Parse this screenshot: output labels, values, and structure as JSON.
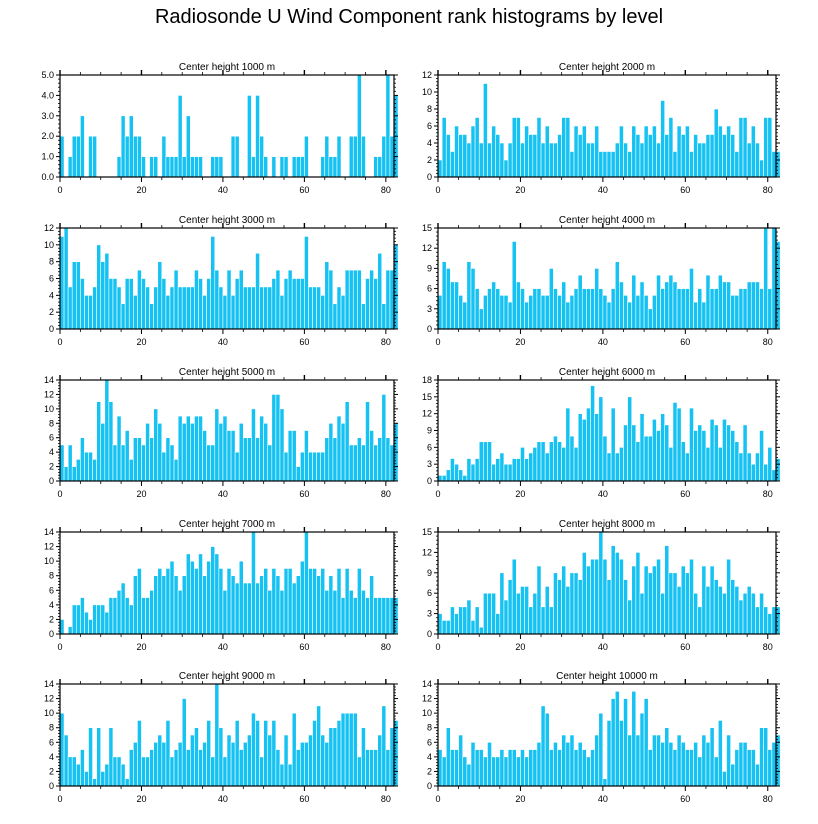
{
  "title": "Radiosonde U Wind Component rank histograms by level",
  "colors": {
    "bar": "#16c2f2",
    "bar_stroke": "#ffffff",
    "axis": "#000000"
  },
  "chart_data": [
    {
      "type": "bar",
      "title": "Center height 1000 m",
      "xlim": [
        0,
        82
      ],
      "ylim": [
        0,
        5
      ],
      "yticks": [
        0,
        1,
        2,
        3,
        4,
        5
      ],
      "ytick_labels": [
        "0.0",
        "1.0",
        "2.0",
        "3.0",
        "4.0",
        "5.0"
      ],
      "xticks": [
        0,
        20,
        40,
        60,
        80
      ],
      "xtick_labels": [
        "0",
        "20",
        "40",
        "60",
        "80"
      ],
      "values": [
        2,
        0,
        1,
        2,
        2,
        3,
        0,
        2,
        2,
        0,
        0,
        0,
        0,
        0,
        1,
        3,
        2,
        3,
        2,
        2,
        1,
        0,
        1,
        1,
        0,
        2,
        1,
        1,
        1,
        4,
        1,
        3,
        1,
        1,
        1,
        0,
        0,
        1,
        1,
        1,
        0,
        0,
        2,
        2,
        0,
        0,
        4,
        1,
        4,
        2,
        1,
        0,
        1,
        0,
        1,
        1,
        0,
        1,
        1,
        1,
        2,
        0,
        0,
        0,
        1,
        2,
        1,
        1,
        2,
        0,
        0,
        2,
        2,
        5,
        2,
        0,
        0,
        1,
        1,
        2,
        5,
        2,
        4
      ]
    },
    {
      "type": "bar",
      "title": "Center height 2000 m",
      "xlim": [
        0,
        82
      ],
      "ylim": [
        0,
        12
      ],
      "yticks": [
        0,
        2,
        4,
        6,
        8,
        10,
        12
      ],
      "ytick_labels": [
        "0",
        "2",
        "4",
        "6",
        "8",
        "10",
        "12"
      ],
      "xticks": [
        0,
        20,
        40,
        60,
        80
      ],
      "xtick_labels": [
        "0",
        "20",
        "40",
        "60",
        "80"
      ],
      "values": [
        2,
        7,
        5,
        3,
        6,
        5,
        5,
        4,
        6,
        7,
        4,
        11,
        4,
        6,
        5,
        4,
        2,
        4,
        7,
        7,
        4,
        6,
        5,
        5,
        7,
        4,
        6,
        4,
        4,
        5,
        7,
        7,
        3,
        6,
        5,
        6,
        4,
        4,
        6,
        3,
        3,
        3,
        3,
        4,
        6,
        4,
        3,
        6,
        5,
        4,
        6,
        5,
        6,
        4,
        9,
        5,
        7,
        3,
        6,
        5,
        6,
        3,
        5,
        4,
        4,
        5,
        5,
        8,
        6,
        5,
        6,
        5,
        3,
        7,
        7,
        4,
        6,
        4,
        2,
        7,
        7,
        3,
        3
      ]
    },
    {
      "type": "bar",
      "title": "Center height 3000 m",
      "xlim": [
        0,
        82
      ],
      "ylim": [
        0,
        12
      ],
      "yticks": [
        0,
        2,
        4,
        6,
        8,
        10,
        12
      ],
      "ytick_labels": [
        "0",
        "2",
        "4",
        "6",
        "8",
        "10",
        "12"
      ],
      "xticks": [
        0,
        20,
        40,
        60,
        80
      ],
      "xtick_labels": [
        "0",
        "20",
        "40",
        "60",
        "80"
      ],
      "values": [
        11,
        12,
        5,
        8,
        8,
        6,
        4,
        4,
        5,
        10,
        8,
        9,
        6,
        6,
        5,
        3,
        6,
        6,
        4,
        7,
        6,
        5,
        3,
        5,
        8,
        6,
        4,
        5,
        7,
        5,
        5,
        5,
        5,
        7,
        6,
        4,
        6,
        11,
        7,
        5,
        4,
        7,
        4,
        6,
        7,
        5,
        5,
        5,
        9,
        5,
        5,
        5,
        6,
        7,
        4,
        6,
        7,
        6,
        6,
        6,
        11,
        5,
        5,
        5,
        4,
        8,
        7,
        3,
        5,
        4,
        7,
        7,
        7,
        7,
        3,
        6,
        7,
        6,
        9,
        3,
        7,
        7,
        10
      ]
    },
    {
      "type": "bar",
      "title": "Center height 4000 m",
      "xlim": [
        0,
        82
      ],
      "ylim": [
        0,
        15
      ],
      "yticks": [
        0,
        3,
        6,
        9,
        12,
        15
      ],
      "ytick_labels": [
        "0",
        "3",
        "6",
        "9",
        "12",
        "15"
      ],
      "xticks": [
        0,
        20,
        40,
        60,
        80
      ],
      "xtick_labels": [
        "0",
        "20",
        "40",
        "60",
        "80"
      ],
      "values": [
        5,
        10,
        9,
        7,
        7,
        5,
        4,
        10,
        9,
        6,
        3,
        5,
        6,
        7,
        6,
        5,
        5,
        4,
        13,
        7,
        6,
        4,
        5,
        6,
        6,
        5,
        5,
        9,
        6,
        5,
        7,
        4,
        5,
        6,
        8,
        6,
        6,
        6,
        9,
        6,
        5,
        4,
        6,
        10,
        7,
        5,
        4,
        8,
        5,
        7,
        5,
        3,
        5,
        8,
        6,
        7,
        8,
        7,
        6,
        6,
        6,
        9,
        4,
        6,
        4,
        8,
        6,
        6,
        8,
        7,
        7,
        5,
        5,
        6,
        6,
        7,
        7,
        7,
        6,
        15,
        6,
        15,
        13
      ]
    },
    {
      "type": "bar",
      "title": "Center height 5000 m",
      "xlim": [
        0,
        82
      ],
      "ylim": [
        0,
        14
      ],
      "yticks": [
        0,
        2,
        4,
        6,
        8,
        10,
        12,
        14
      ],
      "ytick_labels": [
        "0",
        "2",
        "4",
        "6",
        "8",
        "10",
        "12",
        "14"
      ],
      "xticks": [
        0,
        20,
        40,
        60,
        80
      ],
      "xtick_labels": [
        "0",
        "20",
        "40",
        "60",
        "80"
      ],
      "values": [
        5,
        2,
        5,
        2,
        3,
        6,
        4,
        4,
        3,
        11,
        8,
        14,
        11,
        5,
        9,
        5,
        7,
        3,
        6,
        6,
        5,
        8,
        6,
        10,
        8,
        4,
        6,
        5,
        3,
        9,
        8,
        9,
        8,
        9,
        9,
        7,
        5,
        5,
        10,
        8,
        9,
        7,
        7,
        4,
        8,
        6,
        6,
        10,
        6,
        9,
        8,
        5,
        12,
        12,
        10,
        4,
        7,
        7,
        2,
        4,
        7,
        4,
        4,
        4,
        4,
        6,
        8,
        6,
        9,
        8,
        11,
        5,
        5,
        6,
        5,
        11,
        7,
        5,
        6,
        12,
        6,
        5,
        8
      ]
    },
    {
      "type": "bar",
      "title": "Center height 6000 m",
      "xlim": [
        0,
        82
      ],
      "ylim": [
        0,
        18
      ],
      "yticks": [
        0,
        3,
        6,
        9,
        12,
        15,
        18
      ],
      "ytick_labels": [
        "0",
        "3",
        "6",
        "9",
        "12",
        "15",
        "18"
      ],
      "xticks": [
        0,
        20,
        40,
        60,
        80
      ],
      "xtick_labels": [
        "0",
        "20",
        "40",
        "60",
        "80"
      ],
      "values": [
        1,
        1,
        2,
        4,
        3,
        2,
        1,
        4,
        3,
        4,
        7,
        7,
        7,
        3,
        4,
        5,
        3,
        3,
        4,
        4,
        6,
        4,
        5,
        6,
        7,
        7,
        5,
        7,
        8,
        7,
        6,
        13,
        8,
        6,
        12,
        11,
        13,
        17,
        12,
        15,
        8,
        5,
        13,
        5,
        6,
        10,
        15,
        10,
        7,
        12,
        8,
        8,
        11,
        9,
        12,
        10,
        6,
        14,
        13,
        7,
        5,
        13,
        9,
        10,
        9,
        6,
        11,
        10,
        6,
        11,
        10,
        9,
        7,
        5,
        10,
        5,
        3,
        5,
        9,
        3,
        6,
        2,
        4
      ]
    },
    {
      "type": "bar",
      "title": "Center height 7000 m",
      "xlim": [
        0,
        82
      ],
      "ylim": [
        0,
        14
      ],
      "yticks": [
        0,
        2,
        4,
        6,
        8,
        10,
        12,
        14
      ],
      "ytick_labels": [
        "0",
        "2",
        "4",
        "6",
        "8",
        "10",
        "12",
        "14"
      ],
      "xticks": [
        0,
        20,
        40,
        60,
        80
      ],
      "xtick_labels": [
        "0",
        "20",
        "40",
        "60",
        "80"
      ],
      "values": [
        2,
        0,
        1,
        4,
        4,
        5,
        3,
        2,
        4,
        4,
        4,
        3,
        5,
        5,
        6,
        7,
        5,
        4,
        8,
        9,
        5,
        5,
        6,
        8,
        9,
        8,
        9,
        10,
        8,
        6,
        8,
        11,
        10,
        9,
        11,
        8,
        10,
        12,
        11,
        9,
        6,
        9,
        8,
        7,
        10,
        7,
        7,
        14,
        7,
        8,
        9,
        6,
        9,
        8,
        6,
        9,
        9,
        7,
        8,
        10,
        14,
        9,
        9,
        8,
        9,
        6,
        8,
        6,
        9,
        5,
        9,
        6,
        5,
        9,
        6,
        5,
        8,
        5,
        5,
        5,
        5,
        5,
        5
      ]
    },
    {
      "type": "bar",
      "title": "Center height 8000 m",
      "xlim": [
        0,
        82
      ],
      "ylim": [
        0,
        15
      ],
      "yticks": [
        0,
        3,
        6,
        9,
        12,
        15
      ],
      "ytick_labels": [
        "0",
        "3",
        "6",
        "9",
        "12",
        "15"
      ],
      "xticks": [
        0,
        20,
        40,
        60,
        80
      ],
      "xtick_labels": [
        "0",
        "20",
        "40",
        "60",
        "80"
      ],
      "values": [
        3,
        2,
        2,
        4,
        3,
        4,
        4,
        5,
        2,
        4,
        1,
        6,
        6,
        6,
        3,
        9,
        5,
        8,
        11,
        6,
        7,
        7,
        4,
        6,
        10,
        4,
        7,
        4,
        9,
        8,
        10,
        7,
        9,
        9,
        8,
        12,
        10,
        11,
        11,
        15,
        11,
        8,
        13,
        12,
        11,
        8,
        5,
        10,
        12,
        6,
        10,
        9,
        10,
        11,
        6,
        13,
        9,
        9,
        7,
        10,
        9,
        11,
        6,
        4,
        10,
        7,
        10,
        8,
        7,
        6,
        11,
        8,
        7,
        5,
        6,
        7,
        6,
        4,
        6,
        4,
        3,
        4,
        4
      ]
    },
    {
      "type": "bar",
      "title": "Center height 9000 m",
      "xlim": [
        0,
        82
      ],
      "ylim": [
        0,
        14
      ],
      "yticks": [
        0,
        2,
        4,
        6,
        8,
        10,
        12,
        14
      ],
      "ytick_labels": [
        "0",
        "2",
        "4",
        "6",
        "8",
        "10",
        "12",
        "14"
      ],
      "xticks": [
        0,
        20,
        40,
        60,
        80
      ],
      "xtick_labels": [
        "0",
        "20",
        "40",
        "60",
        "80"
      ],
      "values": [
        10,
        7,
        4,
        4,
        3,
        5,
        2,
        8,
        1,
        8,
        2,
        3,
        8,
        4,
        4,
        3,
        1,
        5,
        6,
        9,
        4,
        4,
        5,
        6,
        7,
        6,
        9,
        4,
        5,
        6,
        12,
        5,
        7,
        8,
        5,
        6,
        9,
        4,
        14,
        8,
        4,
        7,
        6,
        9,
        5,
        6,
        7,
        10,
        9,
        4,
        9,
        7,
        9,
        5,
        3,
        7,
        3,
        10,
        5,
        6,
        6,
        7,
        9,
        11,
        7,
        6,
        8,
        8,
        9,
        10,
        10,
        10,
        10,
        4,
        8,
        5,
        5,
        5,
        7,
        11,
        5,
        8,
        9
      ]
    },
    {
      "type": "bar",
      "title": "Center height 10000 m",
      "xlim": [
        0,
        82
      ],
      "ylim": [
        0,
        14
      ],
      "yticks": [
        0,
        2,
        4,
        6,
        8,
        10,
        12,
        14
      ],
      "ytick_labels": [
        "0",
        "2",
        "4",
        "6",
        "8",
        "10",
        "12",
        "14"
      ],
      "xticks": [
        0,
        20,
        40,
        60,
        80
      ],
      "xtick_labels": [
        "0",
        "20",
        "40",
        "60",
        "80"
      ],
      "values": [
        5,
        4,
        8,
        5,
        5,
        7,
        4,
        3,
        6,
        5,
        5,
        4,
        6,
        4,
        4,
        5,
        4,
        5,
        5,
        4,
        5,
        4,
        5,
        5,
        6,
        11,
        10,
        5,
        6,
        5,
        7,
        6,
        7,
        5,
        6,
        5,
        4,
        5,
        7,
        10,
        1,
        9,
        12,
        13,
        9,
        12,
        7,
        13,
        7,
        10,
        12,
        5,
        7,
        7,
        6,
        8,
        6,
        5,
        7,
        6,
        5,
        5,
        6,
        4,
        7,
        6,
        8,
        4,
        9,
        2,
        7,
        3,
        5,
        6,
        6,
        5,
        5,
        3,
        8,
        8,
        5,
        6,
        7
      ]
    }
  ]
}
